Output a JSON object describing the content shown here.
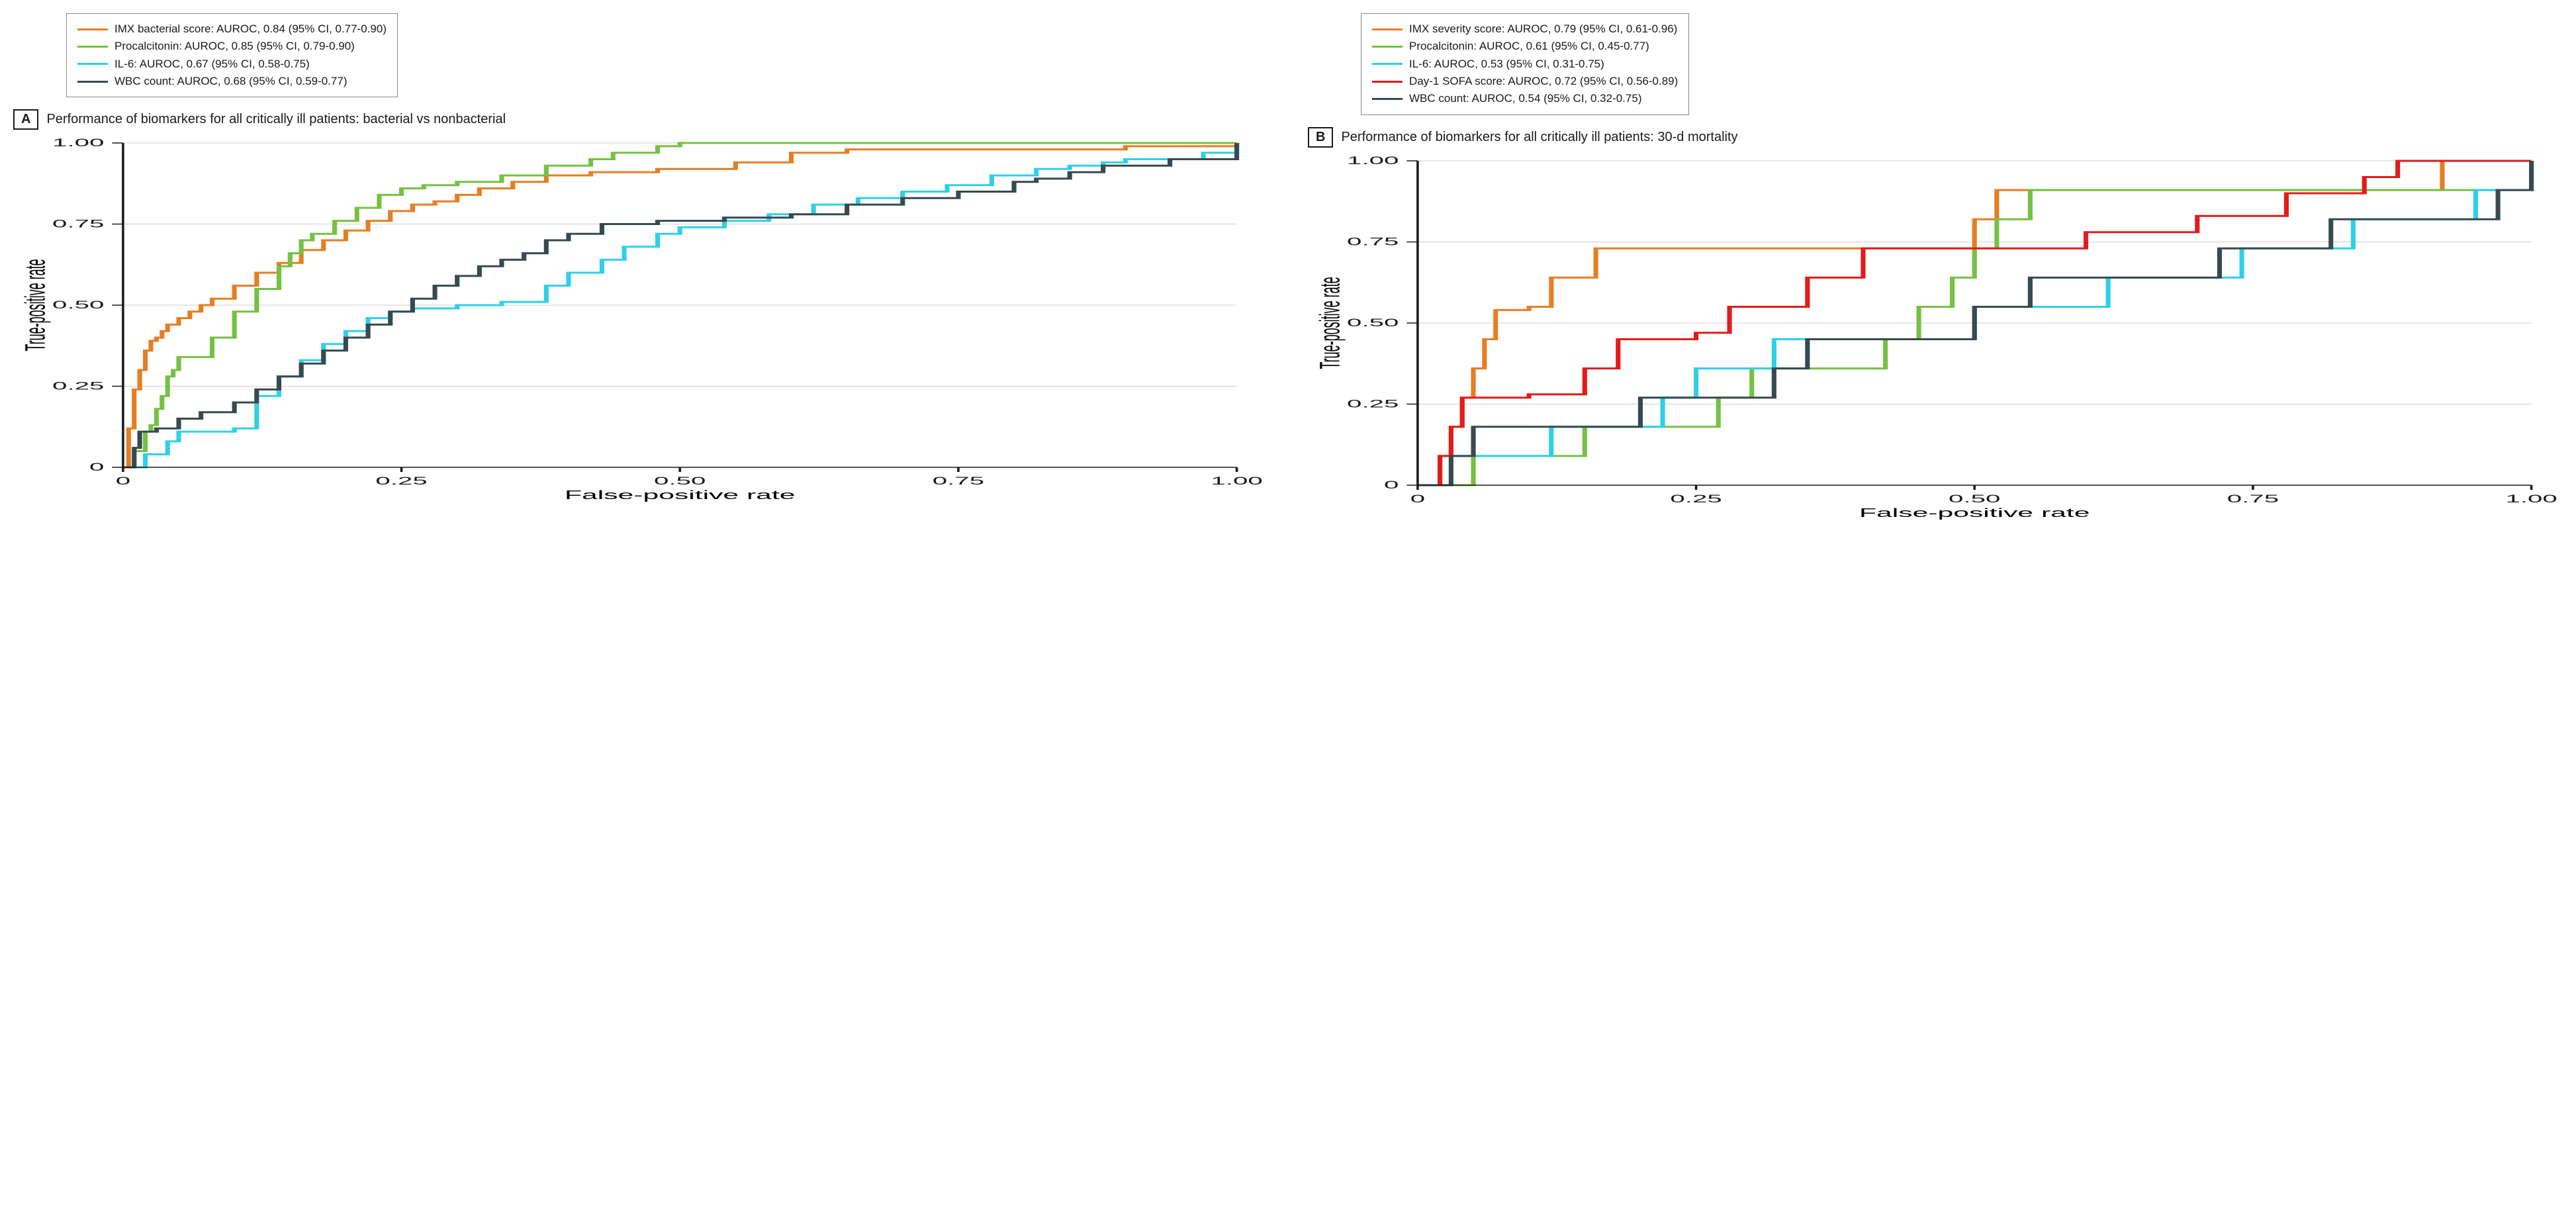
{
  "colors": {
    "orange": "#E67E22",
    "green": "#76C043",
    "cyan": "#2FD0E6",
    "dark": "#364A4F",
    "red": "#E31B1B",
    "grid": "#D0D0D0",
    "axis": "#1a1a1a",
    "bg": "#ffffff"
  },
  "xlim": [
    0,
    1
  ],
  "ylim": [
    0,
    1
  ],
  "xticks": [
    0,
    0.25,
    0.5,
    0.75,
    1.0
  ],
  "yticks": [
    0,
    0.25,
    0.5,
    0.75,
    1.0
  ],
  "xlabel": "False-positive rate",
  "ylabel": "True-positive rate",
  "tick_fontsize": 17,
  "label_fontsize": 18,
  "title_fontsize": 20,
  "line_width": 3,
  "panels": [
    {
      "letter": "A",
      "title": "Performance of biomarkers for all critically ill patients: bacterial vs nonbacterial",
      "legend": [
        {
          "colorKey": "orange",
          "label": "IMX bacterial score: AUROC, 0.84 (95% CI, 0.77-0.90)"
        },
        {
          "colorKey": "green",
          "label": "Procalcitonin: AUROC, 0.85 (95% CI, 0.79-0.90)"
        },
        {
          "colorKey": "cyan",
          "label": "IL-6: AUROC, 0.67 (95% CI, 0.58-0.75)"
        },
        {
          "colorKey": "dark",
          "label": "WBC count: AUROC, 0.68 (95% CI, 0.59-0.77)"
        }
      ],
      "series": [
        {
          "colorKey": "orange",
          "points": [
            [
              0.0,
              0.0
            ],
            [
              0.005,
              0.12
            ],
            [
              0.01,
              0.24
            ],
            [
              0.015,
              0.3
            ],
            [
              0.02,
              0.36
            ],
            [
              0.025,
              0.39
            ],
            [
              0.03,
              0.4
            ],
            [
              0.035,
              0.42
            ],
            [
              0.04,
              0.44
            ],
            [
              0.05,
              0.46
            ],
            [
              0.06,
              0.48
            ],
            [
              0.07,
              0.5
            ],
            [
              0.08,
              0.52
            ],
            [
              0.1,
              0.56
            ],
            [
              0.12,
              0.6
            ],
            [
              0.14,
              0.63
            ],
            [
              0.16,
              0.67
            ],
            [
              0.18,
              0.7
            ],
            [
              0.2,
              0.73
            ],
            [
              0.22,
              0.76
            ],
            [
              0.24,
              0.79
            ],
            [
              0.26,
              0.81
            ],
            [
              0.28,
              0.82
            ],
            [
              0.3,
              0.84
            ],
            [
              0.32,
              0.86
            ],
            [
              0.35,
              0.88
            ],
            [
              0.38,
              0.9
            ],
            [
              0.42,
              0.91
            ],
            [
              0.48,
              0.92
            ],
            [
              0.55,
              0.94
            ],
            [
              0.6,
              0.97
            ],
            [
              0.65,
              0.98
            ],
            [
              0.8,
              0.98
            ],
            [
              0.9,
              0.99
            ],
            [
              1.0,
              1.0
            ]
          ]
        },
        {
          "colorKey": "green",
          "points": [
            [
              0.0,
              0.0
            ],
            [
              0.01,
              0.05
            ],
            [
              0.02,
              0.11
            ],
            [
              0.025,
              0.13
            ],
            [
              0.03,
              0.18
            ],
            [
              0.035,
              0.22
            ],
            [
              0.04,
              0.28
            ],
            [
              0.045,
              0.3
            ],
            [
              0.05,
              0.34
            ],
            [
              0.06,
              0.34
            ],
            [
              0.08,
              0.4
            ],
            [
              0.1,
              0.48
            ],
            [
              0.12,
              0.55
            ],
            [
              0.14,
              0.62
            ],
            [
              0.15,
              0.66
            ],
            [
              0.16,
              0.7
            ],
            [
              0.17,
              0.72
            ],
            [
              0.19,
              0.76
            ],
            [
              0.21,
              0.8
            ],
            [
              0.23,
              0.84
            ],
            [
              0.25,
              0.86
            ],
            [
              0.27,
              0.87
            ],
            [
              0.3,
              0.88
            ],
            [
              0.34,
              0.9
            ],
            [
              0.38,
              0.93
            ],
            [
              0.42,
              0.95
            ],
            [
              0.44,
              0.97
            ],
            [
              0.48,
              0.99
            ],
            [
              0.5,
              1.0
            ],
            [
              1.0,
              1.0
            ]
          ]
        },
        {
          "colorKey": "cyan",
          "points": [
            [
              0.0,
              0.0
            ],
            [
              0.02,
              0.04
            ],
            [
              0.04,
              0.08
            ],
            [
              0.05,
              0.11
            ],
            [
              0.1,
              0.12
            ],
            [
              0.12,
              0.22
            ],
            [
              0.14,
              0.28
            ],
            [
              0.16,
              0.33
            ],
            [
              0.18,
              0.38
            ],
            [
              0.2,
              0.42
            ],
            [
              0.22,
              0.46
            ],
            [
              0.24,
              0.48
            ],
            [
              0.26,
              0.49
            ],
            [
              0.3,
              0.5
            ],
            [
              0.34,
              0.51
            ],
            [
              0.38,
              0.56
            ],
            [
              0.4,
              0.6
            ],
            [
              0.43,
              0.64
            ],
            [
              0.45,
              0.68
            ],
            [
              0.48,
              0.72
            ],
            [
              0.5,
              0.74
            ],
            [
              0.54,
              0.76
            ],
            [
              0.58,
              0.78
            ],
            [
              0.62,
              0.81
            ],
            [
              0.66,
              0.83
            ],
            [
              0.7,
              0.85
            ],
            [
              0.74,
              0.87
            ],
            [
              0.78,
              0.9
            ],
            [
              0.82,
              0.92
            ],
            [
              0.85,
              0.93
            ],
            [
              0.88,
              0.94
            ],
            [
              0.9,
              0.95
            ],
            [
              0.95,
              0.95
            ],
            [
              0.97,
              0.97
            ],
            [
              1.0,
              1.0
            ]
          ]
        },
        {
          "colorKey": "dark",
          "points": [
            [
              0.0,
              0.0
            ],
            [
              0.01,
              0.06
            ],
            [
              0.015,
              0.11
            ],
            [
              0.03,
              0.12
            ],
            [
              0.05,
              0.15
            ],
            [
              0.07,
              0.17
            ],
            [
              0.1,
              0.2
            ],
            [
              0.12,
              0.24
            ],
            [
              0.14,
              0.28
            ],
            [
              0.16,
              0.32
            ],
            [
              0.18,
              0.36
            ],
            [
              0.2,
              0.4
            ],
            [
              0.22,
              0.44
            ],
            [
              0.24,
              0.48
            ],
            [
              0.26,
              0.52
            ],
            [
              0.28,
              0.56
            ],
            [
              0.3,
              0.59
            ],
            [
              0.32,
              0.62
            ],
            [
              0.34,
              0.64
            ],
            [
              0.36,
              0.66
            ],
            [
              0.38,
              0.7
            ],
            [
              0.4,
              0.72
            ],
            [
              0.43,
              0.75
            ],
            [
              0.48,
              0.76
            ],
            [
              0.54,
              0.77
            ],
            [
              0.6,
              0.78
            ],
            [
              0.65,
              0.81
            ],
            [
              0.7,
              0.83
            ],
            [
              0.75,
              0.85
            ],
            [
              0.8,
              0.88
            ],
            [
              0.82,
              0.89
            ],
            [
              0.85,
              0.91
            ],
            [
              0.88,
              0.93
            ],
            [
              0.9,
              0.93
            ],
            [
              0.94,
              0.95
            ],
            [
              0.98,
              0.95
            ],
            [
              1.0,
              1.0
            ]
          ]
        }
      ]
    },
    {
      "letter": "B",
      "title": "Performance of biomarkers for all critically ill patients: 30-d mortality",
      "legend": [
        {
          "colorKey": "orange",
          "label": "IMX severity score: AUROC, 0.79 (95% CI, 0.61-0.96)"
        },
        {
          "colorKey": "green",
          "label": "Procalcitonin: AUROC, 0.61 (95% CI, 0.45-0.77)"
        },
        {
          "colorKey": "cyan",
          "label": "IL-6: AUROC, 0.53 (95% CI, 0.31-0.75)"
        },
        {
          "colorKey": "red",
          "label": "Day-1 SOFA score: AUROC, 0.72 (95% CI, 0.56-0.89)"
        },
        {
          "colorKey": "dark",
          "label": "WBC count: AUROC, 0.54 (95% CI, 0.32-0.75)"
        }
      ],
      "series": [
        {
          "colorKey": "orange",
          "points": [
            [
              0.0,
              0.0
            ],
            [
              0.02,
              0.09
            ],
            [
              0.03,
              0.18
            ],
            [
              0.04,
              0.27
            ],
            [
              0.05,
              0.36
            ],
            [
              0.06,
              0.45
            ],
            [
              0.07,
              0.54
            ],
            [
              0.1,
              0.55
            ],
            [
              0.12,
              0.64
            ],
            [
              0.16,
              0.73
            ],
            [
              0.18,
              0.73
            ],
            [
              0.45,
              0.73
            ],
            [
              0.5,
              0.82
            ],
            [
              0.52,
              0.91
            ],
            [
              0.9,
              0.91
            ],
            [
              0.92,
              1.0
            ],
            [
              1.0,
              1.0
            ]
          ]
        },
        {
          "colorKey": "green",
          "points": [
            [
              0.0,
              0.0
            ],
            [
              0.04,
              0.0
            ],
            [
              0.05,
              0.09
            ],
            [
              0.1,
              0.09
            ],
            [
              0.15,
              0.18
            ],
            [
              0.25,
              0.18
            ],
            [
              0.27,
              0.27
            ],
            [
              0.3,
              0.36
            ],
            [
              0.4,
              0.36
            ],
            [
              0.42,
              0.45
            ],
            [
              0.45,
              0.55
            ],
            [
              0.48,
              0.64
            ],
            [
              0.5,
              0.73
            ],
            [
              0.52,
              0.82
            ],
            [
              0.55,
              0.91
            ],
            [
              0.97,
              0.91
            ],
            [
              1.0,
              1.0
            ]
          ]
        },
        {
          "colorKey": "cyan",
          "points": [
            [
              0.0,
              0.0
            ],
            [
              0.02,
              0.09
            ],
            [
              0.1,
              0.09
            ],
            [
              0.12,
              0.18
            ],
            [
              0.2,
              0.18
            ],
            [
              0.22,
              0.27
            ],
            [
              0.25,
              0.36
            ],
            [
              0.3,
              0.36
            ],
            [
              0.32,
              0.45
            ],
            [
              0.45,
              0.45
            ],
            [
              0.5,
              0.55
            ],
            [
              0.6,
              0.55
            ],
            [
              0.62,
              0.64
            ],
            [
              0.72,
              0.64
            ],
            [
              0.74,
              0.73
            ],
            [
              0.82,
              0.73
            ],
            [
              0.84,
              0.82
            ],
            [
              0.9,
              0.82
            ],
            [
              0.95,
              0.91
            ],
            [
              0.97,
              0.91
            ],
            [
              1.0,
              1.0
            ]
          ]
        },
        {
          "colorKey": "red",
          "points": [
            [
              0.0,
              0.0
            ],
            [
              0.02,
              0.09
            ],
            [
              0.03,
              0.18
            ],
            [
              0.04,
              0.27
            ],
            [
              0.1,
              0.28
            ],
            [
              0.15,
              0.36
            ],
            [
              0.18,
              0.45
            ],
            [
              0.25,
              0.47
            ],
            [
              0.28,
              0.55
            ],
            [
              0.35,
              0.64
            ],
            [
              0.4,
              0.73
            ],
            [
              0.5,
              0.73
            ],
            [
              0.6,
              0.78
            ],
            [
              0.7,
              0.83
            ],
            [
              0.78,
              0.9
            ],
            [
              0.85,
              0.95
            ],
            [
              0.88,
              1.0
            ],
            [
              1.0,
              1.0
            ]
          ]
        },
        {
          "colorKey": "dark",
          "points": [
            [
              0.0,
              0.0
            ],
            [
              0.03,
              0.09
            ],
            [
              0.05,
              0.18
            ],
            [
              0.18,
              0.18
            ],
            [
              0.2,
              0.27
            ],
            [
              0.3,
              0.27
            ],
            [
              0.32,
              0.36
            ],
            [
              0.35,
              0.45
            ],
            [
              0.48,
              0.45
            ],
            [
              0.5,
              0.55
            ],
            [
              0.55,
              0.64
            ],
            [
              0.7,
              0.64
            ],
            [
              0.72,
              0.73
            ],
            [
              0.8,
              0.73
            ],
            [
              0.82,
              0.82
            ],
            [
              0.95,
              0.82
            ],
            [
              0.97,
              0.91
            ],
            [
              0.99,
              0.91
            ],
            [
              1.0,
              1.0
            ]
          ]
        }
      ]
    }
  ]
}
